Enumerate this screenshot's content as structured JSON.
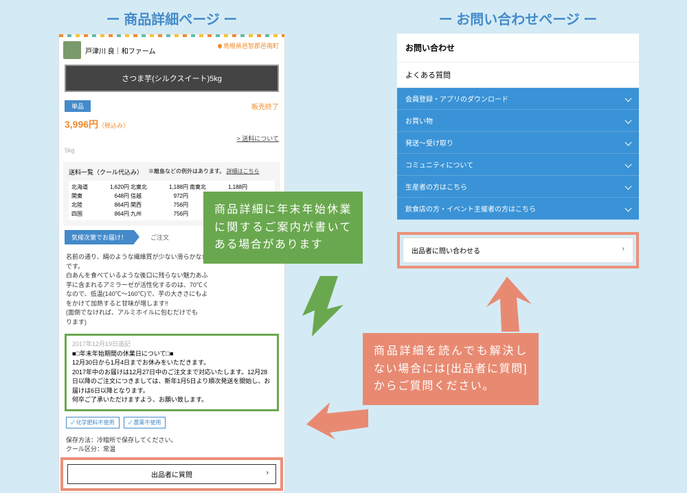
{
  "left": {
    "title": "ー 商品詳細ページ ー",
    "vendor": "戸津川 良｜和ファーム",
    "location": "島根県邑智郡邑南町",
    "product_name": "さつま芋(シルクスイート)5kg",
    "badge": "単品",
    "sold_out": "販売終了",
    "price": "3,996円",
    "price_tax": "（税込み）",
    "shipping_link": "> 送料について",
    "weight": "5kg",
    "shipping": {
      "header": "送料一覧（クール代込み）",
      "note_pre": "※離島などの例外はあります。",
      "note_link": "詳細はこちら",
      "rows": [
        [
          "北海道",
          "1,620円",
          "北東北",
          "1,188円",
          "南東北",
          "1,188円"
        ],
        [
          "関東",
          "648円",
          "信越",
          "972円",
          "",
          ""
        ],
        [
          "北陸",
          "864円",
          "関西",
          "756円",
          "",
          ""
        ],
        [
          "四国",
          "864円",
          "九州",
          "756円",
          "",
          ""
        ]
      ]
    },
    "ribbon": "気候次第でお届け！",
    "order_label": "ご注文",
    "desc_lines": [
      "名前の通り、絹のような繊維質が少ない滑らかな食",
      "です。",
      "白あんを食べているような後口に残らない魅力あふ",
      "芋に含まれるアミラーゼが活性化するのは、70℃く",
      "なので、低温(140℃～160℃)で、芋の大きさにもよ",
      "をかけて加熱すると甘味が増します!!",
      "(面倒でなければ、アルミホイルに包むだけでも",
      "ります)"
    ],
    "notice": {
      "date": "2017年12月19日追記",
      "title": "■□年末年始期間の休業日について□■",
      "l1": "12月30日から1月4日までお休みをいただきます。",
      "l2": "2017年中のお届けは12月27日中のご注文まで対応いたします。12月28日以降のご注文につきましては、新年1月5日より順次発送を開始し、お届けは6日以降となります。",
      "l3": "何卒ご了承いただけますよう、お願い致します。"
    },
    "tags": [
      "化学肥料不使用",
      "農薬不使用"
    ],
    "storage1": "保存方法：冷暗所で保存してください。",
    "storage2": "クール区分：常温",
    "ask_seller": "出品者に質問"
  },
  "right": {
    "title": "ー お問い合わせページ ー",
    "contact": "お問い合わせ",
    "faq": "よくある質問",
    "items": [
      "会員登録・アプリのダウンロード",
      "お買い物",
      "発送～受け取り",
      "コミュニティについて",
      "生産者の方はこちら",
      "飲食店の方・イベント主催者の方はこちら"
    ],
    "contact_seller": "出品者に問い合わせる"
  },
  "callouts": {
    "green": "商品詳細に年末年始休業に関するご案内が書いてある場合があります",
    "salmon": "商品詳細を読んでも解決しない場合には[出品者に質問]からご質問ください。"
  },
  "colors": {
    "green": "#6aa84f",
    "salmon": "#e88a72",
    "blue": "#448aca"
  }
}
